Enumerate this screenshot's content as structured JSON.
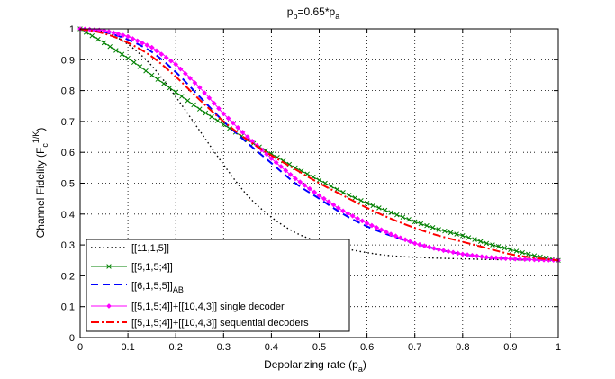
{
  "chart_data": {
    "type": "line",
    "title": {
      "base": "p",
      "sub1": "b",
      "mid": "=0.65*p",
      "sub2": "a"
    },
    "xlabel": {
      "base": "Depolarizing rate (p",
      "sub": "a",
      "tail": ")"
    },
    "ylabel": {
      "base": "Channel Fidelity (F",
      "sub": "c",
      "sup": "1/K",
      "tail": ")"
    },
    "xlim": [
      0,
      1
    ],
    "ylim": [
      0,
      1
    ],
    "grid": true,
    "legend_position": "bottom-left",
    "x_ticks": [
      "0",
      "0.1",
      "0.2",
      "0.3",
      "0.4",
      "0.5",
      "0.6",
      "0.7",
      "0.8",
      "0.9",
      "1"
    ],
    "y_ticks": [
      "0",
      "0.1",
      "0.2",
      "0.3",
      "0.4",
      "0.5",
      "0.6",
      "0.7",
      "0.8",
      "0.9",
      "1"
    ],
    "x": [
      0,
      0.05,
      0.1,
      0.15,
      0.2,
      0.25,
      0.3,
      0.35,
      0.4,
      0.45,
      0.5,
      0.55,
      0.6,
      0.65,
      0.7,
      0.75,
      0.8,
      0.85,
      0.9,
      0.95,
      1.0
    ],
    "series": [
      {
        "name": "[[11,1,5]]",
        "color": "#000000",
        "style": "dotted",
        "marker": "none",
        "values": [
          1.0,
          0.99,
          0.95,
          0.88,
          0.78,
          0.67,
          0.56,
          0.46,
          0.39,
          0.34,
          0.31,
          0.29,
          0.275,
          0.265,
          0.26,
          0.257,
          0.255,
          0.253,
          0.252,
          0.251,
          0.25
        ]
      },
      {
        "name": "[[5,1,5;4]]",
        "color": "#008000",
        "style": "solid",
        "marker": "x",
        "values": [
          1.0,
          0.955,
          0.905,
          0.85,
          0.795,
          0.74,
          0.69,
          0.64,
          0.595,
          0.55,
          0.51,
          0.47,
          0.435,
          0.405,
          0.375,
          0.35,
          0.33,
          0.305,
          0.285,
          0.265,
          0.25
        ]
      },
      {
        "name": {
          "base": "[[6,1,5;5]]",
          "sub": "AB"
        },
        "color": "#0000ff",
        "style": "dashed",
        "marker": "none",
        "values": [
          1.0,
          0.99,
          0.965,
          0.925,
          0.86,
          0.78,
          0.7,
          0.63,
          0.565,
          0.5,
          0.45,
          0.4,
          0.36,
          0.33,
          0.305,
          0.285,
          0.27,
          0.26,
          0.255,
          0.252,
          0.25
        ]
      },
      {
        "name": "[[5,1,5;4]]+[[10,4,3]] single decoder",
        "color": "#ff00ff",
        "style": "solid",
        "marker": "diamond",
        "values": [
          1.0,
          0.995,
          0.975,
          0.94,
          0.885,
          0.81,
          0.725,
          0.65,
          0.58,
          0.515,
          0.46,
          0.41,
          0.37,
          0.335,
          0.305,
          0.285,
          0.27,
          0.26,
          0.255,
          0.252,
          0.25
        ]
      },
      {
        "name": "[[5,1,5;4]]+[[10,4,3]] sequential decoders",
        "color": "#ff0000",
        "style": "dashdot",
        "marker": "none",
        "values": [
          1.0,
          0.985,
          0.955,
          0.91,
          0.845,
          0.77,
          0.7,
          0.64,
          0.59,
          0.545,
          0.5,
          0.46,
          0.42,
          0.385,
          0.355,
          0.33,
          0.31,
          0.29,
          0.27,
          0.258,
          0.25
        ]
      }
    ]
  }
}
